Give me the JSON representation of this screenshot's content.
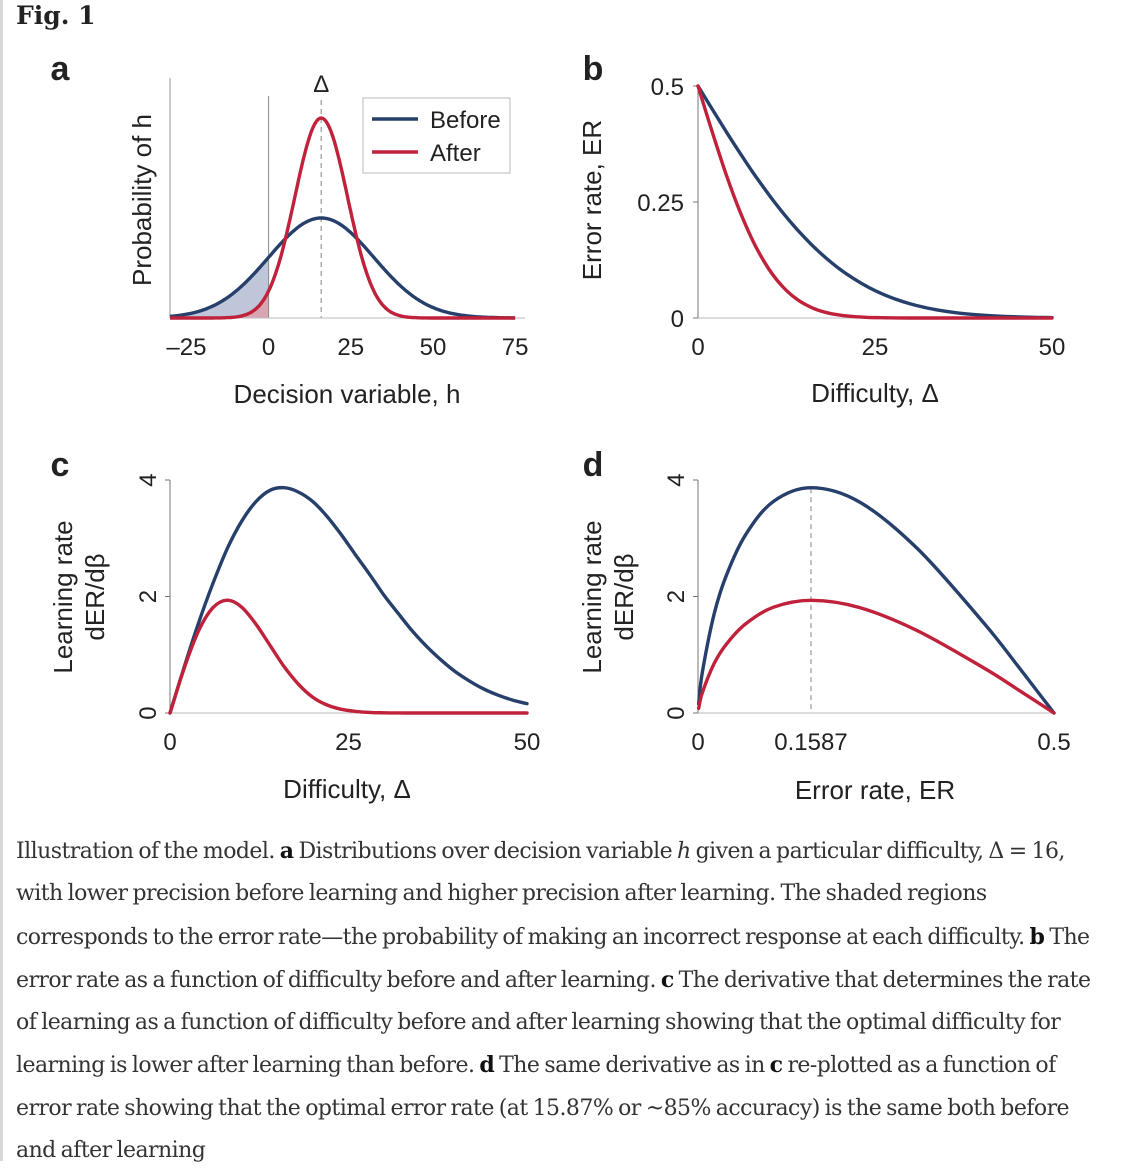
{
  "figure": {
    "title": "Fig. 1"
  },
  "chart_data": [
    {
      "panel": "a",
      "type": "line",
      "xlabel": "Decision variable, h",
      "ylabel": "Probability of h",
      "xlim": [
        -30,
        78
      ],
      "xticks": [
        "–25",
        "0",
        "25",
        "50",
        "75"
      ],
      "xtick_values": [
        -25,
        0,
        25,
        50,
        75
      ],
      "marker_label": "Δ",
      "marker_x": 16,
      "threshold_x": 0,
      "legend": {
        "position": "top-right",
        "entries": [
          "Before",
          "After"
        ]
      },
      "series": [
        {
          "name": "Before",
          "color": "#27406b",
          "distribution": "normal",
          "mean": 16,
          "sd": 16,
          "peak": 1.0
        },
        {
          "name": "After",
          "color": "#c0213b",
          "distribution": "normal",
          "mean": 16,
          "sd": 8,
          "peak": 2.0
        }
      ],
      "shaded_region": "h < 0"
    },
    {
      "panel": "b",
      "type": "line",
      "xlabel": "Difficulty, Δ",
      "ylabel": "Error rate, ER",
      "xlim": [
        0,
        50
      ],
      "ylim": [
        0,
        0.5
      ],
      "xticks": [
        "0",
        "25",
        "50"
      ],
      "xtick_values": [
        0,
        25,
        50
      ],
      "yticks": [
        "0",
        "0.25",
        "0.5"
      ],
      "ytick_values": [
        0,
        0.25,
        0.5
      ],
      "series": [
        {
          "name": "Before",
          "color": "#27406b",
          "x": [
            0,
            2,
            4,
            6,
            8,
            10,
            12,
            14,
            16,
            18,
            20,
            22,
            24,
            26,
            28,
            30,
            32,
            34,
            36,
            38,
            40,
            42,
            44,
            46,
            48,
            50
          ],
          "values": [
            0.5,
            0.4503,
            0.4013,
            0.3538,
            0.3085,
            0.266,
            0.2266,
            0.1908,
            0.1587,
            0.1303,
            0.1056,
            0.0846,
            0.0668,
            0.0521,
            0.0401,
            0.0304,
            0.0228,
            0.0169,
            0.0122,
            0.0088,
            0.0062,
            0.0043,
            0.003,
            0.002,
            0.0013,
            0.0009
          ]
        },
        {
          "name": "After",
          "color": "#c0213b",
          "x": [
            0,
            2,
            4,
            6,
            8,
            10,
            12,
            14,
            16,
            18,
            20,
            22,
            24,
            26,
            28,
            30,
            32,
            34,
            36,
            38,
            40,
            42,
            44,
            46,
            48,
            50
          ],
          "values": [
            0.5,
            0.4013,
            0.3085,
            0.2266,
            0.1587,
            0.1056,
            0.0668,
            0.0401,
            0.0228,
            0.0122,
            0.0062,
            0.003,
            0.0013,
            0.0006,
            0.0002,
            0.0001,
            0,
            0,
            0,
            0,
            0,
            0,
            0,
            0,
            0,
            0
          ]
        }
      ]
    },
    {
      "panel": "c",
      "type": "line",
      "xlabel": "Difficulty, Δ",
      "ylabel": [
        "Learning rate",
        "dER/dβ"
      ],
      "xlim": [
        0,
        50
      ],
      "ylim": [
        0,
        4
      ],
      "xticks": [
        "0",
        "25",
        "50"
      ],
      "xtick_values": [
        0,
        25,
        50
      ],
      "yticks": [
        "0",
        "2",
        "4"
      ],
      "ytick_values": [
        0,
        2,
        4
      ],
      "series": [
        {
          "name": "Before",
          "color": "#27406b",
          "x": [
            0,
            2,
            4,
            6,
            8,
            10,
            12,
            14,
            16,
            18,
            20,
            22,
            24,
            26,
            28,
            30,
            32,
            34,
            36,
            38,
            40,
            42,
            44,
            46,
            48,
            50
          ],
          "values": [
            0,
            0.794,
            1.547,
            2.22,
            2.817,
            3.284,
            3.624,
            3.824,
            3.867,
            3.793,
            3.629,
            3.374,
            3.059,
            2.713,
            2.373,
            2.017,
            1.704,
            1.399,
            1.137,
            0.906,
            0.705,
            0.544,
            0.408,
            0.304,
            0.221,
            0.16
          ]
        },
        {
          "name": "After",
          "color": "#c0213b",
          "x": [
            0,
            2,
            4,
            6,
            8,
            10,
            12,
            14,
            16,
            18,
            20,
            22,
            24,
            26,
            28,
            30,
            32,
            34,
            36,
            38,
            40,
            42,
            44,
            46,
            48,
            50
          ],
          "values": [
            0,
            0.773,
            1.411,
            1.806,
            1.936,
            1.822,
            1.532,
            1.163,
            0.793,
            0.493,
            0.271,
            0.138,
            0.064,
            0.028,
            0.01,
            0.004,
            0.001,
            0,
            0,
            0,
            0,
            0,
            0,
            0,
            0,
            0
          ]
        }
      ]
    },
    {
      "panel": "d",
      "type": "line",
      "xlabel": "Error rate, ER",
      "ylabel": [
        "Learning rate",
        "dER/dβ"
      ],
      "xlim": [
        0,
        0.5
      ],
      "ylim": [
        0,
        4
      ],
      "xticks": [
        "0",
        "0.1587",
        "0.5"
      ],
      "xtick_values": [
        0,
        0.1587,
        0.5
      ],
      "yticks": [
        "0",
        "2",
        "4"
      ],
      "ytick_values": [
        0,
        2,
        4
      ],
      "marker_x": 0.1587,
      "series": [
        {
          "name": "Before",
          "color": "#27406b",
          "x": [
            0.0009,
            0.0062,
            0.0228,
            0.0401,
            0.0668,
            0.1056,
            0.1587,
            0.2266,
            0.3085,
            0.4013,
            0.45,
            0.5
          ],
          "values": [
            0.16,
            0.705,
            1.704,
            2.373,
            3.059,
            3.629,
            3.867,
            3.624,
            2.817,
            1.547,
            0.794,
            0
          ]
        },
        {
          "name": "After",
          "color": "#c0213b",
          "x": [
            0.0009,
            0.0062,
            0.0228,
            0.0401,
            0.0668,
            0.1056,
            0.1587,
            0.2266,
            0.3085,
            0.4013,
            0.45,
            0.5
          ],
          "values": [
            0.08,
            0.352,
            0.852,
            1.187,
            1.53,
            1.814,
            1.934,
            1.812,
            1.409,
            0.774,
            0.397,
            0
          ]
        }
      ]
    }
  ],
  "caption": {
    "s1": "Illustration of the model.",
    "s2": "a",
    "s3": " Distributions over decision variable ",
    "s4": "h",
    "s5": " given a particular difficulty, Δ = 16, with lower precision before learning and higher precision after learning. The shaded regions corresponds to the error rate—the probability of making an incorrect response at each difficulty.",
    "s6": "b",
    "s7": " The error rate as a function of difficulty before and after learning.",
    "s8": "c",
    "s9": " The derivative that determines the rate of learning as a function of difficulty before and after learning showing that the optimal difficulty for learning is lower after learning than before.",
    "s10": "d",
    "s11": " The same derivative as in ",
    "s12": "c",
    "s13": " re-plotted as a function of error rate showing that the optimal error rate (at 15.87% or ~85% accuracy) is the same both before and after learning"
  }
}
